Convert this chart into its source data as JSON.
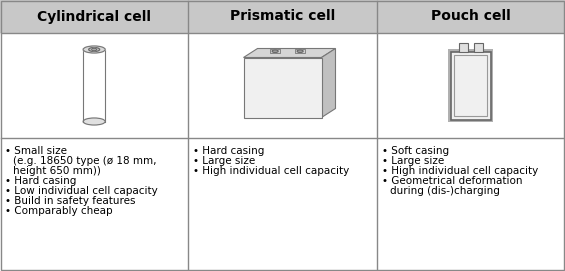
{
  "columns": [
    "Cylindrical cell",
    "Prismatic cell",
    "Pouch cell"
  ],
  "header_bg": "#c8c8c8",
  "border_color": "#aaaaaa",
  "header_font_size": 10,
  "body_font_size": 7.5,
  "bullet_items": [
    [
      "Small size",
      "(e.g. 18650 type (ø 18 mm,",
      "height 650 mm))",
      "Hard casing",
      "Low individual cell capacity",
      "Build in safety features",
      "Comparably cheap"
    ],
    [
      "Hard casing",
      "Large size",
      "High individual cell capacity"
    ],
    [
      "Soft casing",
      "Large size",
      "High individual cell capacity",
      "Geometrical deformation",
      "during (dis-)charging"
    ]
  ],
  "bullet_first_cont": [
    true,
    false,
    false,
    true,
    true,
    true,
    true
  ],
  "fig_bg": "#ffffff"
}
